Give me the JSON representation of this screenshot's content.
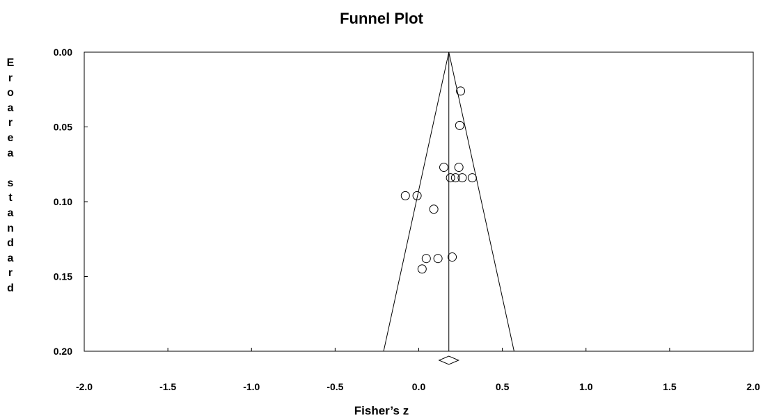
{
  "chart_data": {
    "type": "scatter",
    "title": "Funnel Plot",
    "xlabel": "Fisher’s z",
    "ylabel": "Eroarea standard",
    "xlim": [
      -2.0,
      2.0
    ],
    "ylim": [
      0.0,
      0.2
    ],
    "y_reversed": true,
    "grid": false,
    "x_ticks": [
      "-2.0",
      "-1.5",
      "-1.0",
      "-0.5",
      "0.0",
      "0.5",
      "1.0",
      "1.5",
      "2.0"
    ],
    "y_ticks": [
      "0.00",
      "0.05",
      "0.10",
      "0.15",
      "0.20"
    ],
    "pooled_estimate": 0.18,
    "funnel_limits_at_max_se": [
      -0.21,
      0.57
    ],
    "points": [
      {
        "x": 0.25,
        "y": 0.026
      },
      {
        "x": 0.245,
        "y": 0.049
      },
      {
        "x": 0.15,
        "y": 0.077
      },
      {
        "x": 0.24,
        "y": 0.077
      },
      {
        "x": 0.19,
        "y": 0.084
      },
      {
        "x": 0.22,
        "y": 0.084
      },
      {
        "x": 0.26,
        "y": 0.084
      },
      {
        "x": 0.32,
        "y": 0.084
      },
      {
        "x": -0.08,
        "y": 0.096
      },
      {
        "x": -0.01,
        "y": 0.096
      },
      {
        "x": 0.09,
        "y": 0.105
      },
      {
        "x": 0.2,
        "y": 0.137
      },
      {
        "x": 0.045,
        "y": 0.138
      },
      {
        "x": 0.115,
        "y": 0.138
      },
      {
        "x": 0.02,
        "y": 0.145
      }
    ]
  }
}
